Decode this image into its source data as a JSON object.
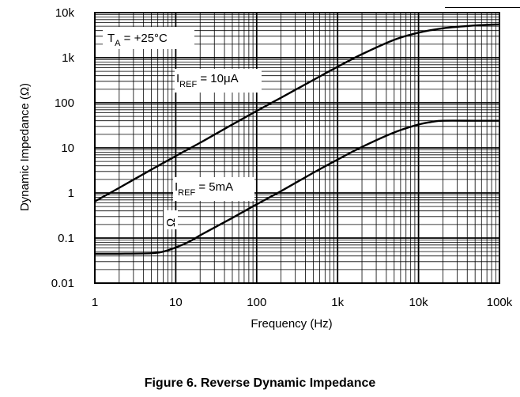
{
  "caption": "Figure 6. Reverse Dynamic Impedance",
  "chart_data": {
    "type": "line",
    "title": "",
    "xlabel": "Frequency (Hz)",
    "ylabel": "Dynamic Impedance (Ω)",
    "x_scale": "log",
    "y_scale": "log",
    "xlim": [
      1,
      100000
    ],
    "ylim": [
      0.01,
      10000
    ],
    "x_tick_labels": [
      "1",
      "10",
      "100",
      "1k",
      "10k",
      "100k"
    ],
    "y_tick_labels": [
      "10k",
      "1k",
      "100",
      "10",
      "1",
      "0.1",
      "0.01"
    ],
    "grid": true,
    "annotations": {
      "temp": {
        "main": "T",
        "sub": "A",
        "rest": " = +25°C"
      },
      "iref_high": {
        "main": "I",
        "sub": "REF",
        "rest": " = 10μA"
      },
      "iref_low": {
        "main": "I",
        "sub": "REF",
        "rest": " = 5mA"
      },
      "stray": "Ω"
    },
    "series": [
      {
        "label": "IREF = 10μA",
        "x": [
          1,
          2,
          5,
          10,
          20,
          50,
          100,
          200,
          500,
          1000,
          2000,
          5000,
          10000,
          20000,
          50000,
          100000
        ],
        "y": [
          0.65,
          1.3,
          3.3,
          6.6,
          13,
          33,
          66,
          130,
          320,
          630,
          1200,
          2500,
          3600,
          4500,
          5200,
          5500
        ]
      },
      {
        "label": "IREF = 5mA",
        "x": [
          1,
          2,
          5,
          7,
          10,
          15,
          20,
          30,
          50,
          100,
          200,
          500,
          1000,
          2000,
          5000,
          10000,
          15000,
          20000,
          50000,
          100000
        ],
        "y": [
          0.045,
          0.045,
          0.046,
          0.05,
          0.062,
          0.085,
          0.115,
          0.17,
          0.28,
          0.56,
          1.1,
          2.8,
          5.5,
          10.5,
          22,
          33,
          38,
          40,
          40,
          40
        ]
      }
    ]
  }
}
